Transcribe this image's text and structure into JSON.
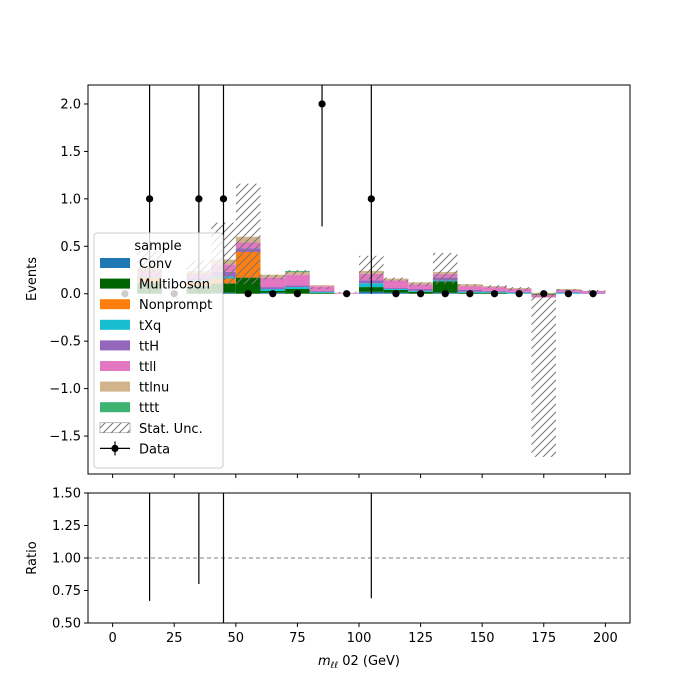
{
  "chart_data": {
    "type": "bar",
    "x_bin_edges": [
      0,
      10,
      20,
      30,
      40,
      50,
      60,
      70,
      80,
      90,
      100,
      110,
      120,
      130,
      140,
      150,
      160,
      170,
      180,
      190,
      200
    ],
    "xlim": [
      -10,
      210
    ],
    "xlabel": "m_{ℓℓ} 02 (GeV)",
    "xlabel_main": "m",
    "xlabel_sub": "ℓℓ",
    "xlabel_rest": " 02 (GeV)",
    "xticks": [
      0,
      25,
      50,
      75,
      100,
      125,
      150,
      175,
      200
    ],
    "main_panel": {
      "ylabel": "Events",
      "ylim": [
        -1.9,
        2.2
      ],
      "yticks": [
        -1.5,
        -1.0,
        -0.5,
        0.0,
        0.5,
        1.0,
        1.5,
        2.0
      ],
      "ytick_labels": [
        "−1.5",
        "−1.0",
        "−0.5",
        "0.0",
        "0.5",
        "1.0",
        "1.5",
        "2.0"
      ],
      "legend_title": "sample",
      "legend_placement": "left",
      "series": [
        {
          "name": "Conv",
          "color": "#1f77b4",
          "values": [
            0,
            0,
            0,
            0,
            0.01,
            0,
            0.01,
            0,
            0,
            0,
            0.02,
            0.01,
            0,
            0.01,
            0,
            0,
            0,
            0,
            0,
            0
          ]
        },
        {
          "name": "Multiboson",
          "color": "#006400",
          "values": [
            0,
            0.12,
            0,
            0.08,
            0.1,
            0.17,
            0.02,
            0.05,
            0.01,
            0,
            0.05,
            0.03,
            0.02,
            0.12,
            0.01,
            0.01,
            0,
            -0.01,
            0,
            0
          ]
        },
        {
          "name": "Nonprompt",
          "color": "#ff7f0e",
          "values": [
            0,
            0.05,
            0,
            0.05,
            0.05,
            0.27,
            0,
            0,
            0,
            0,
            0,
            0,
            0,
            0,
            0,
            0,
            0,
            0,
            0,
            0
          ]
        },
        {
          "name": "tXq",
          "color": "#17becf",
          "values": [
            0,
            0.01,
            0,
            0.01,
            0.02,
            0,
            0.02,
            0.02,
            0.01,
            0,
            0.04,
            0.01,
            0.01,
            0.01,
            0.01,
            0.01,
            0.01,
            0,
            0.01,
            0
          ]
        },
        {
          "name": "ttH",
          "color": "#9467bd",
          "values": [
            0,
            0.01,
            0,
            0.02,
            0.05,
            0.04,
            0.02,
            0.02,
            0.01,
            0,
            0.03,
            0.01,
            0.02,
            0.03,
            0.02,
            0.01,
            0.01,
            0,
            0.01,
            0.01
          ]
        },
        {
          "name": "ttll",
          "color": "#e377c2",
          "values": [
            0,
            0.05,
            0,
            0.05,
            0.08,
            0.06,
            0.1,
            0.11,
            0.05,
            0.01,
            0.07,
            0.08,
            0.05,
            0.04,
            0.04,
            0.04,
            0.03,
            -0.03,
            0.02,
            0.02
          ]
        },
        {
          "name": "ttlnu",
          "color": "#d2b48c",
          "values": [
            0,
            0.03,
            0,
            0.03,
            0.05,
            0.06,
            0.03,
            0.03,
            0.01,
            0,
            0.03,
            0.02,
            0.02,
            0.02,
            0.02,
            0.01,
            0.01,
            0.01,
            0.01,
            0
          ]
        },
        {
          "name": "tttt",
          "color": "#3cb371",
          "values": [
            0,
            0,
            0,
            0,
            0,
            0,
            0,
            0.01,
            0,
            0,
            0,
            0,
            0,
            0,
            0,
            0,
            0,
            0,
            0,
            0
          ]
        }
      ],
      "stat_unc": {
        "name": "Stat. Unc.",
        "low": [
          0,
          0.2,
          0,
          0.1,
          0.1,
          0.1,
          0.15,
          0.2,
          0.05,
          0.01,
          0.15,
          0.13,
          0.08,
          0.1,
          0.08,
          0.06,
          0.03,
          -1.72,
          0.03,
          0.02
        ],
        "high": [
          0,
          0.45,
          0,
          0.35,
          0.75,
          1.16,
          0.2,
          0.25,
          0.07,
          0.02,
          0.4,
          0.17,
          0.12,
          0.43,
          0.1,
          0.09,
          0.07,
          0.01,
          0.05,
          0.04
        ]
      },
      "data": {
        "name": "Data",
        "x": [
          5,
          15,
          25,
          35,
          45,
          55,
          65,
          75,
          85,
          95,
          105,
          115,
          125,
          135,
          145,
          155,
          165,
          175,
          185,
          195
        ],
        "y": [
          0,
          1,
          0,
          1,
          1,
          0,
          0,
          0,
          2,
          0,
          1,
          0,
          0,
          0,
          0,
          0,
          0,
          0,
          0,
          0
        ],
        "yerr_low": [
          0,
          1,
          0,
          1,
          1,
          0,
          0,
          0,
          1.29,
          0,
          1,
          0,
          0,
          0,
          0,
          0,
          0,
          0,
          0,
          0
        ],
        "yerr_high": [
          0,
          2.3,
          0,
          2.3,
          2.3,
          0,
          0,
          0,
          2.6,
          0,
          2.3,
          0,
          0,
          0,
          0,
          0,
          0,
          0,
          0,
          0
        ]
      }
    },
    "ratio_panel": {
      "ylabel": "Ratio",
      "ylim": [
        0.5,
        1.5
      ],
      "yticks": [
        0.5,
        0.75,
        1.0,
        1.25,
        1.5
      ],
      "ytick_labels": [
        "0.50",
        "0.75",
        "1.00",
        "1.25",
        "1.50"
      ],
      "reference_line": 1.0,
      "error_bars": [
        {
          "x": 15,
          "low": 0.67,
          "high": 1.5
        },
        {
          "x": 35,
          "low": 0.8,
          "high": 1.5
        },
        {
          "x": 45,
          "low": 0.5,
          "high": 1.5
        },
        {
          "x": 105,
          "low": 0.69,
          "high": 1.5
        }
      ]
    }
  }
}
